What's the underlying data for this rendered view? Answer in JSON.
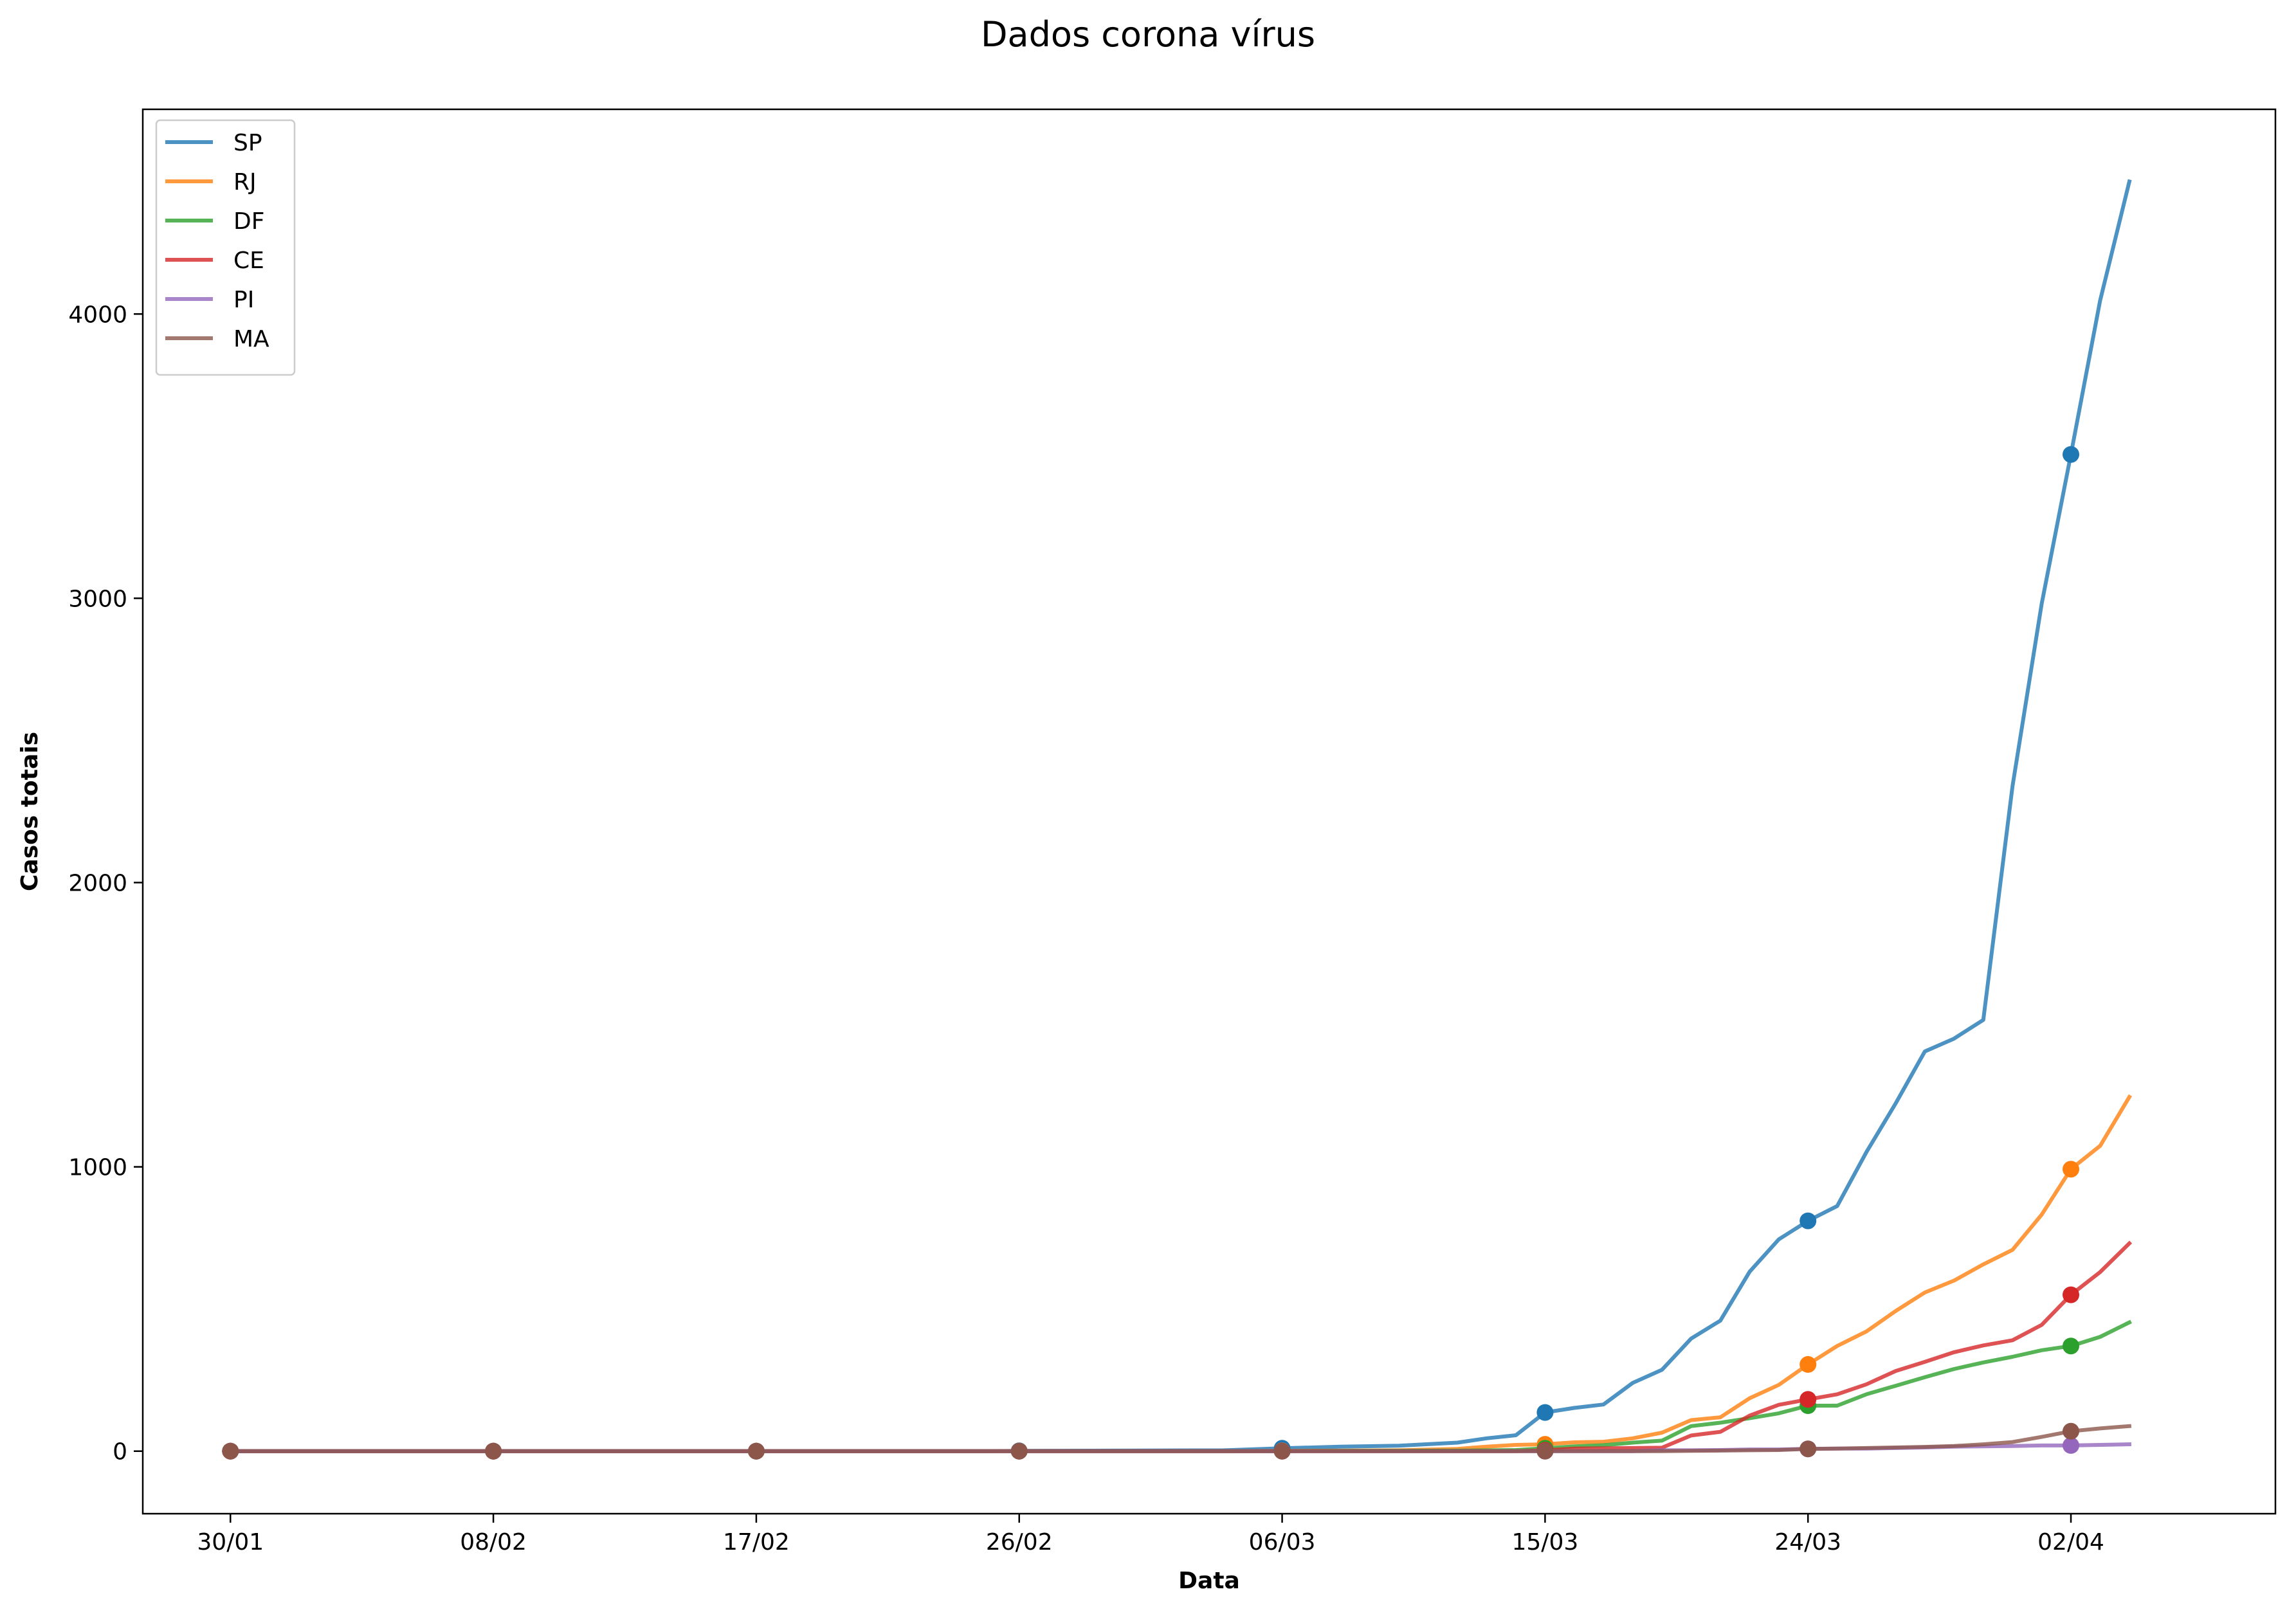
{
  "chart_data": {
    "type": "line",
    "title": "Dados corona vírus",
    "xlabel": "Data",
    "ylabel": "Casos totais",
    "x_start": "2020-01-30",
    "x_end": "2020-04-04",
    "xlim": [
      "2020-01-27",
      "2020-04-09"
    ],
    "ylim": [
      -220,
      4720
    ],
    "x_ticks": [
      "30/01",
      "08/02",
      "17/02",
      "26/02",
      "06/03",
      "15/03",
      "24/03",
      "02/04"
    ],
    "x_tick_dates": [
      "2020-01-30",
      "2020-02-08",
      "2020-02-17",
      "2020-02-26",
      "2020-03-06",
      "2020-03-15",
      "2020-03-24",
      "2020-04-02"
    ],
    "y_ticks": [
      0,
      1000,
      2000,
      3000,
      4000
    ],
    "grid": false,
    "legend_position": "top-left",
    "markers_at": [
      "2020-01-30",
      "2020-02-08",
      "2020-02-17",
      "2020-02-26",
      "2020-03-06",
      "2020-03-15",
      "2020-03-24",
      "2020-04-02"
    ],
    "series": [
      {
        "name": "SP",
        "color": "#1f77b4",
        "points": [
          [
            "2020-01-30",
            0
          ],
          [
            "2020-02-25",
            0
          ],
          [
            "2020-02-26",
            1
          ],
          [
            "2020-03-04",
            3
          ],
          [
            "2020-03-06",
            10
          ],
          [
            "2020-03-08",
            16
          ],
          [
            "2020-03-10",
            19
          ],
          [
            "2020-03-12",
            30
          ],
          [
            "2020-03-13",
            45
          ],
          [
            "2020-03-14",
            56
          ],
          [
            "2020-03-15",
            136
          ],
          [
            "2020-03-16",
            152
          ],
          [
            "2020-03-17",
            164
          ],
          [
            "2020-03-18",
            240
          ],
          [
            "2020-03-19",
            286
          ],
          [
            "2020-03-20",
            396
          ],
          [
            "2020-03-21",
            459
          ],
          [
            "2020-03-22",
            631
          ],
          [
            "2020-03-23",
            745
          ],
          [
            "2020-03-24",
            810
          ],
          [
            "2020-03-25",
            862
          ],
          [
            "2020-03-26",
            1052
          ],
          [
            "2020-03-27",
            1223
          ],
          [
            "2020-03-28",
            1406
          ],
          [
            "2020-03-29",
            1451
          ],
          [
            "2020-03-30",
            1517
          ],
          [
            "2020-03-31",
            2339
          ],
          [
            "2020-04-01",
            2981
          ],
          [
            "2020-04-02",
            3506
          ],
          [
            "2020-04-03",
            4048
          ],
          [
            "2020-04-04",
            4466
          ]
        ]
      },
      {
        "name": "RJ",
        "color": "#ff7f0e",
        "points": [
          [
            "2020-01-30",
            0
          ],
          [
            "2020-03-04",
            0
          ],
          [
            "2020-03-06",
            1
          ],
          [
            "2020-03-10",
            3
          ],
          [
            "2020-03-12",
            8
          ],
          [
            "2020-03-13",
            16
          ],
          [
            "2020-03-14",
            22
          ],
          [
            "2020-03-15",
            24
          ],
          [
            "2020-03-16",
            31
          ],
          [
            "2020-03-17",
            33
          ],
          [
            "2020-03-18",
            45
          ],
          [
            "2020-03-19",
            65
          ],
          [
            "2020-03-20",
            109
          ],
          [
            "2020-03-21",
            119
          ],
          [
            "2020-03-22",
            186
          ],
          [
            "2020-03-23",
            233
          ],
          [
            "2020-03-24",
            305
          ],
          [
            "2020-03-25",
            370
          ],
          [
            "2020-03-26",
            421
          ],
          [
            "2020-03-27",
            493
          ],
          [
            "2020-03-28",
            558
          ],
          [
            "2020-03-29",
            600
          ],
          [
            "2020-03-30",
            657
          ],
          [
            "2020-03-31",
            708
          ],
          [
            "2020-04-01",
            832
          ],
          [
            "2020-04-02",
            992
          ],
          [
            "2020-04-03",
            1074
          ],
          [
            "2020-04-04",
            1246
          ]
        ]
      },
      {
        "name": "DF",
        "color": "#2ca02c",
        "points": [
          [
            "2020-01-30",
            0
          ],
          [
            "2020-03-06",
            0
          ],
          [
            "2020-03-08",
            1
          ],
          [
            "2020-03-12",
            2
          ],
          [
            "2020-03-14",
            4
          ],
          [
            "2020-03-15",
            10
          ],
          [
            "2020-03-16",
            17
          ],
          [
            "2020-03-17",
            21
          ],
          [
            "2020-03-18",
            30
          ],
          [
            "2020-03-19",
            37
          ],
          [
            "2020-03-20",
            88
          ],
          [
            "2020-03-21",
            100
          ],
          [
            "2020-03-22",
            116
          ],
          [
            "2020-03-23",
            133
          ],
          [
            "2020-03-24",
            160
          ],
          [
            "2020-03-25",
            160
          ],
          [
            "2020-03-26",
            200
          ],
          [
            "2020-03-27",
            230
          ],
          [
            "2020-03-28",
            260
          ],
          [
            "2020-03-29",
            289
          ],
          [
            "2020-03-30",
            312
          ],
          [
            "2020-03-31",
            332
          ],
          [
            "2020-04-01",
            355
          ],
          [
            "2020-04-02",
            370
          ],
          [
            "2020-04-03",
            402
          ],
          [
            "2020-04-04",
            453
          ]
        ]
      },
      {
        "name": "CE",
        "color": "#d62728",
        "points": [
          [
            "2020-01-30",
            0
          ],
          [
            "2020-03-14",
            0
          ],
          [
            "2020-03-15",
            3
          ],
          [
            "2020-03-16",
            9
          ],
          [
            "2020-03-17",
            10
          ],
          [
            "2020-03-18",
            11
          ],
          [
            "2020-03-19",
            12
          ],
          [
            "2020-03-20",
            55
          ],
          [
            "2020-03-21",
            68
          ],
          [
            "2020-03-22",
            125
          ],
          [
            "2020-03-23",
            163
          ],
          [
            "2020-03-24",
            182
          ],
          [
            "2020-03-25",
            200
          ],
          [
            "2020-03-26",
            235
          ],
          [
            "2020-03-27",
            282
          ],
          [
            "2020-03-28",
            314
          ],
          [
            "2020-03-29",
            348
          ],
          [
            "2020-03-30",
            372
          ],
          [
            "2020-03-31",
            390
          ],
          [
            "2020-04-01",
            444
          ],
          [
            "2020-04-02",
            550
          ],
          [
            "2020-04-03",
            630
          ],
          [
            "2020-04-04",
            731
          ]
        ]
      },
      {
        "name": "PI",
        "color": "#9467bd",
        "points": [
          [
            "2020-01-30",
            0
          ],
          [
            "2020-03-18",
            0
          ],
          [
            "2020-03-19",
            3
          ],
          [
            "2020-03-20",
            3
          ],
          [
            "2020-03-21",
            4
          ],
          [
            "2020-03-22",
            6
          ],
          [
            "2020-03-23",
            6
          ],
          [
            "2020-03-24",
            8
          ],
          [
            "2020-03-25",
            9
          ],
          [
            "2020-03-26",
            9
          ],
          [
            "2020-03-27",
            11
          ],
          [
            "2020-03-28",
            13
          ],
          [
            "2020-03-29",
            16
          ],
          [
            "2020-03-30",
            17
          ],
          [
            "2020-03-31",
            18
          ],
          [
            "2020-04-01",
            20
          ],
          [
            "2020-04-02",
            20
          ],
          [
            "2020-04-03",
            22
          ],
          [
            "2020-04-04",
            24
          ]
        ]
      },
      {
        "name": "MA",
        "color": "#8c564b",
        "points": [
          [
            "2020-01-30",
            0
          ],
          [
            "2020-03-19",
            0
          ],
          [
            "2020-03-20",
            1
          ],
          [
            "2020-03-21",
            2
          ],
          [
            "2020-03-22",
            3
          ],
          [
            "2020-03-23",
            4
          ],
          [
            "2020-03-24",
            8
          ],
          [
            "2020-03-25",
            9
          ],
          [
            "2020-03-26",
            11
          ],
          [
            "2020-03-27",
            13
          ],
          [
            "2020-03-28",
            15
          ],
          [
            "2020-03-29",
            18
          ],
          [
            "2020-03-30",
            24
          ],
          [
            "2020-03-31",
            32
          ],
          [
            "2020-04-01",
            50
          ],
          [
            "2020-04-02",
            70
          ],
          [
            "2020-04-03",
            80
          ],
          [
            "2020-04-04",
            88
          ]
        ]
      }
    ]
  }
}
